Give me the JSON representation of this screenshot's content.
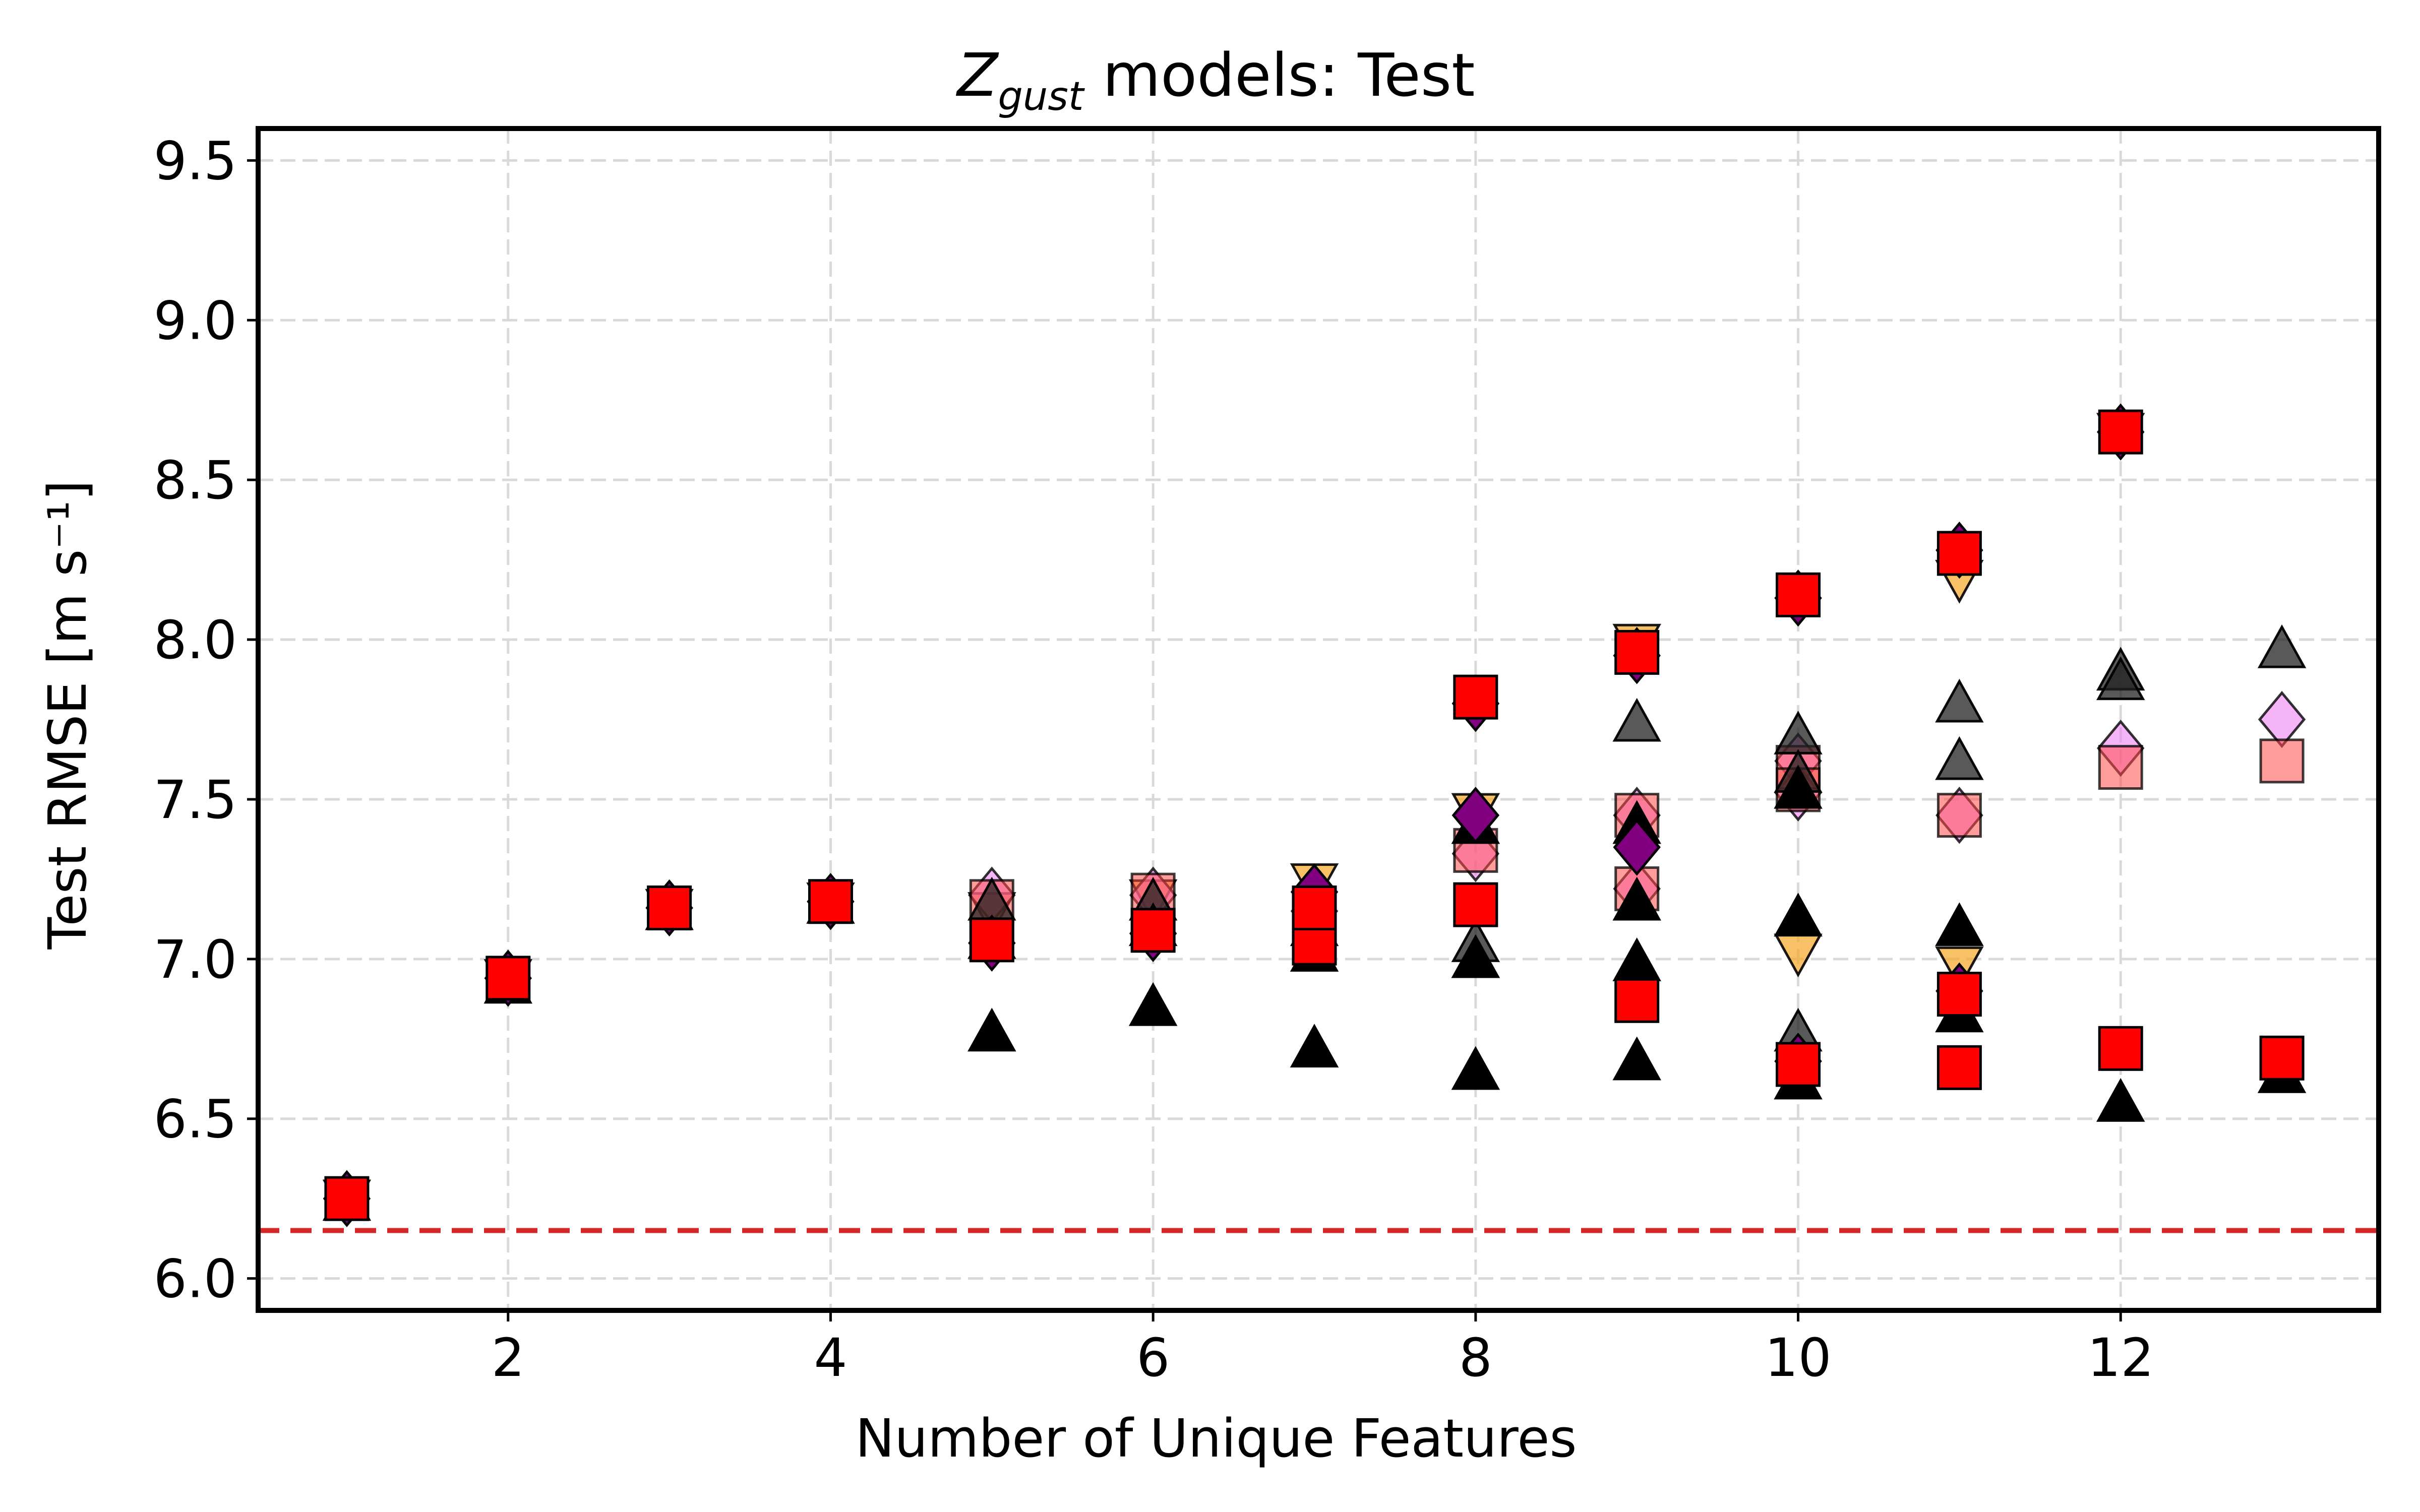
{
  "chart_data": {
    "type": "scatter",
    "title": {
      "symbol": "Z",
      "subscript": "gust",
      "rest": " models: Test"
    },
    "xlabel": "Number of Unique Features",
    "ylabel": "Test RMSE [m s⁻¹]",
    "xlim": [
      0.45,
      13.6
    ],
    "ylim": [
      5.9,
      9.6
    ],
    "xticks": [
      2,
      4,
      6,
      8,
      10,
      12
    ],
    "yticks": [
      6.0,
      6.5,
      7.0,
      7.5,
      8.0,
      8.5,
      9.0,
      9.5
    ],
    "xtick_labels": [
      "2",
      "4",
      "6",
      "8",
      "10",
      "12"
    ],
    "ytick_labels": [
      "6.0",
      "6.5",
      "7.0",
      "7.5",
      "8.0",
      "8.5",
      "9.0",
      "9.5"
    ],
    "grid": true,
    "reference_line": {
      "y": 6.15,
      "color": "#d62728",
      "style": "dashed"
    },
    "series": [
      {
        "marker": "down-triangle",
        "color": "#f5a623",
        "opacity": 0.7,
        "points": [
          [
            1,
            6.25
          ],
          [
            2,
            6.94
          ],
          [
            3,
            7.16
          ],
          [
            4,
            7.18
          ],
          [
            5,
            7.15
          ],
          [
            6,
            7.19
          ],
          [
            7,
            7.24
          ],
          [
            8,
            7.46
          ],
          [
            9,
            7.99
          ],
          [
            10,
            7.02
          ],
          [
            11,
            8.19
          ],
          [
            11,
            6.98
          ],
          [
            12,
            8.65
          ]
        ]
      },
      {
        "marker": "diamond",
        "color": "#ee82ee",
        "opacity": 0.6,
        "points": [
          [
            5,
            7.2
          ],
          [
            6,
            7.2
          ],
          [
            7,
            7.15
          ],
          [
            8,
            7.33
          ],
          [
            9,
            7.45
          ],
          [
            9,
            7.22
          ],
          [
            10,
            7.62
          ],
          [
            10,
            7.52
          ],
          [
            11,
            7.45
          ],
          [
            12,
            7.66
          ],
          [
            13,
            7.75
          ]
        ]
      },
      {
        "marker": "square",
        "color": "#ff4d4d",
        "opacity": 0.55,
        "points": [
          [
            5,
            7.18
          ],
          [
            6,
            7.2
          ],
          [
            7,
            7.12
          ],
          [
            8,
            7.34
          ],
          [
            9,
            7.45
          ],
          [
            9,
            7.22
          ],
          [
            10,
            7.6
          ],
          [
            10,
            7.53
          ],
          [
            11,
            7.45
          ],
          [
            12,
            7.6
          ],
          [
            13,
            7.62
          ]
        ]
      },
      {
        "marker": "triangle",
        "color": "#222222",
        "opacity": 0.75,
        "points": [
          [
            5,
            7.18
          ],
          [
            6,
            7.18
          ],
          [
            7,
            7.1
          ],
          [
            8,
            7.05
          ],
          [
            8,
            7.0
          ],
          [
            9,
            7.74
          ],
          [
            10,
            7.7
          ],
          [
            10,
            7.58
          ],
          [
            10,
            6.77
          ],
          [
            11,
            7.8
          ],
          [
            11,
            7.62
          ],
          [
            12,
            7.9
          ],
          [
            12,
            7.87
          ],
          [
            13,
            7.97
          ]
        ]
      },
      {
        "marker": "triangle",
        "color": "#000000",
        "opacity": 1,
        "points": [
          [
            1,
            6.24
          ],
          [
            2,
            6.92
          ],
          [
            3,
            7.15
          ],
          [
            4,
            7.17
          ],
          [
            5,
            7.06
          ],
          [
            5,
            6.77
          ],
          [
            6,
            7.1
          ],
          [
            6,
            6.85
          ],
          [
            7,
            7.02
          ],
          [
            7,
            6.72
          ],
          [
            8,
            7.42
          ],
          [
            8,
            7.0
          ],
          [
            8,
            6.65
          ],
          [
            9,
            7.42
          ],
          [
            9,
            7.18
          ],
          [
            9,
            6.99
          ],
          [
            9,
            6.68
          ],
          [
            10,
            7.53
          ],
          [
            10,
            7.13
          ],
          [
            10,
            6.62
          ],
          [
            11,
            7.1
          ],
          [
            11,
            6.83
          ],
          [
            12,
            6.55
          ],
          [
            13,
            6.64
          ]
        ]
      },
      {
        "marker": "diamond",
        "color": "#800080",
        "opacity": 1,
        "points": [
          [
            1,
            6.25
          ],
          [
            2,
            6.94
          ],
          [
            3,
            7.16
          ],
          [
            4,
            7.18
          ],
          [
            5,
            7.05
          ],
          [
            6,
            7.08
          ],
          [
            7,
            7.21
          ],
          [
            8,
            7.45
          ],
          [
            8,
            7.8
          ],
          [
            9,
            7.35
          ],
          [
            9,
            7.95
          ],
          [
            10,
            8.13
          ],
          [
            10,
            6.68
          ],
          [
            11,
            8.28
          ],
          [
            11,
            6.9
          ],
          [
            12,
            8.65
          ]
        ]
      },
      {
        "marker": "square",
        "color": "#ff0000",
        "opacity": 1,
        "points": [
          [
            1,
            6.25
          ],
          [
            2,
            6.94
          ],
          [
            3,
            7.16
          ],
          [
            4,
            7.18
          ],
          [
            5,
            7.06
          ],
          [
            6,
            7.09
          ],
          [
            7,
            7.05
          ],
          [
            7,
            7.16
          ],
          [
            8,
            7.17
          ],
          [
            8,
            7.82
          ],
          [
            9,
            6.87
          ],
          [
            9,
            7.96
          ],
          [
            10,
            6.67
          ],
          [
            10,
            8.14
          ],
          [
            11,
            6.89
          ],
          [
            11,
            6.66
          ],
          [
            11,
            8.27
          ],
          [
            12,
            6.72
          ],
          [
            12,
            8.65
          ],
          [
            13,
            6.69
          ]
        ]
      }
    ]
  }
}
